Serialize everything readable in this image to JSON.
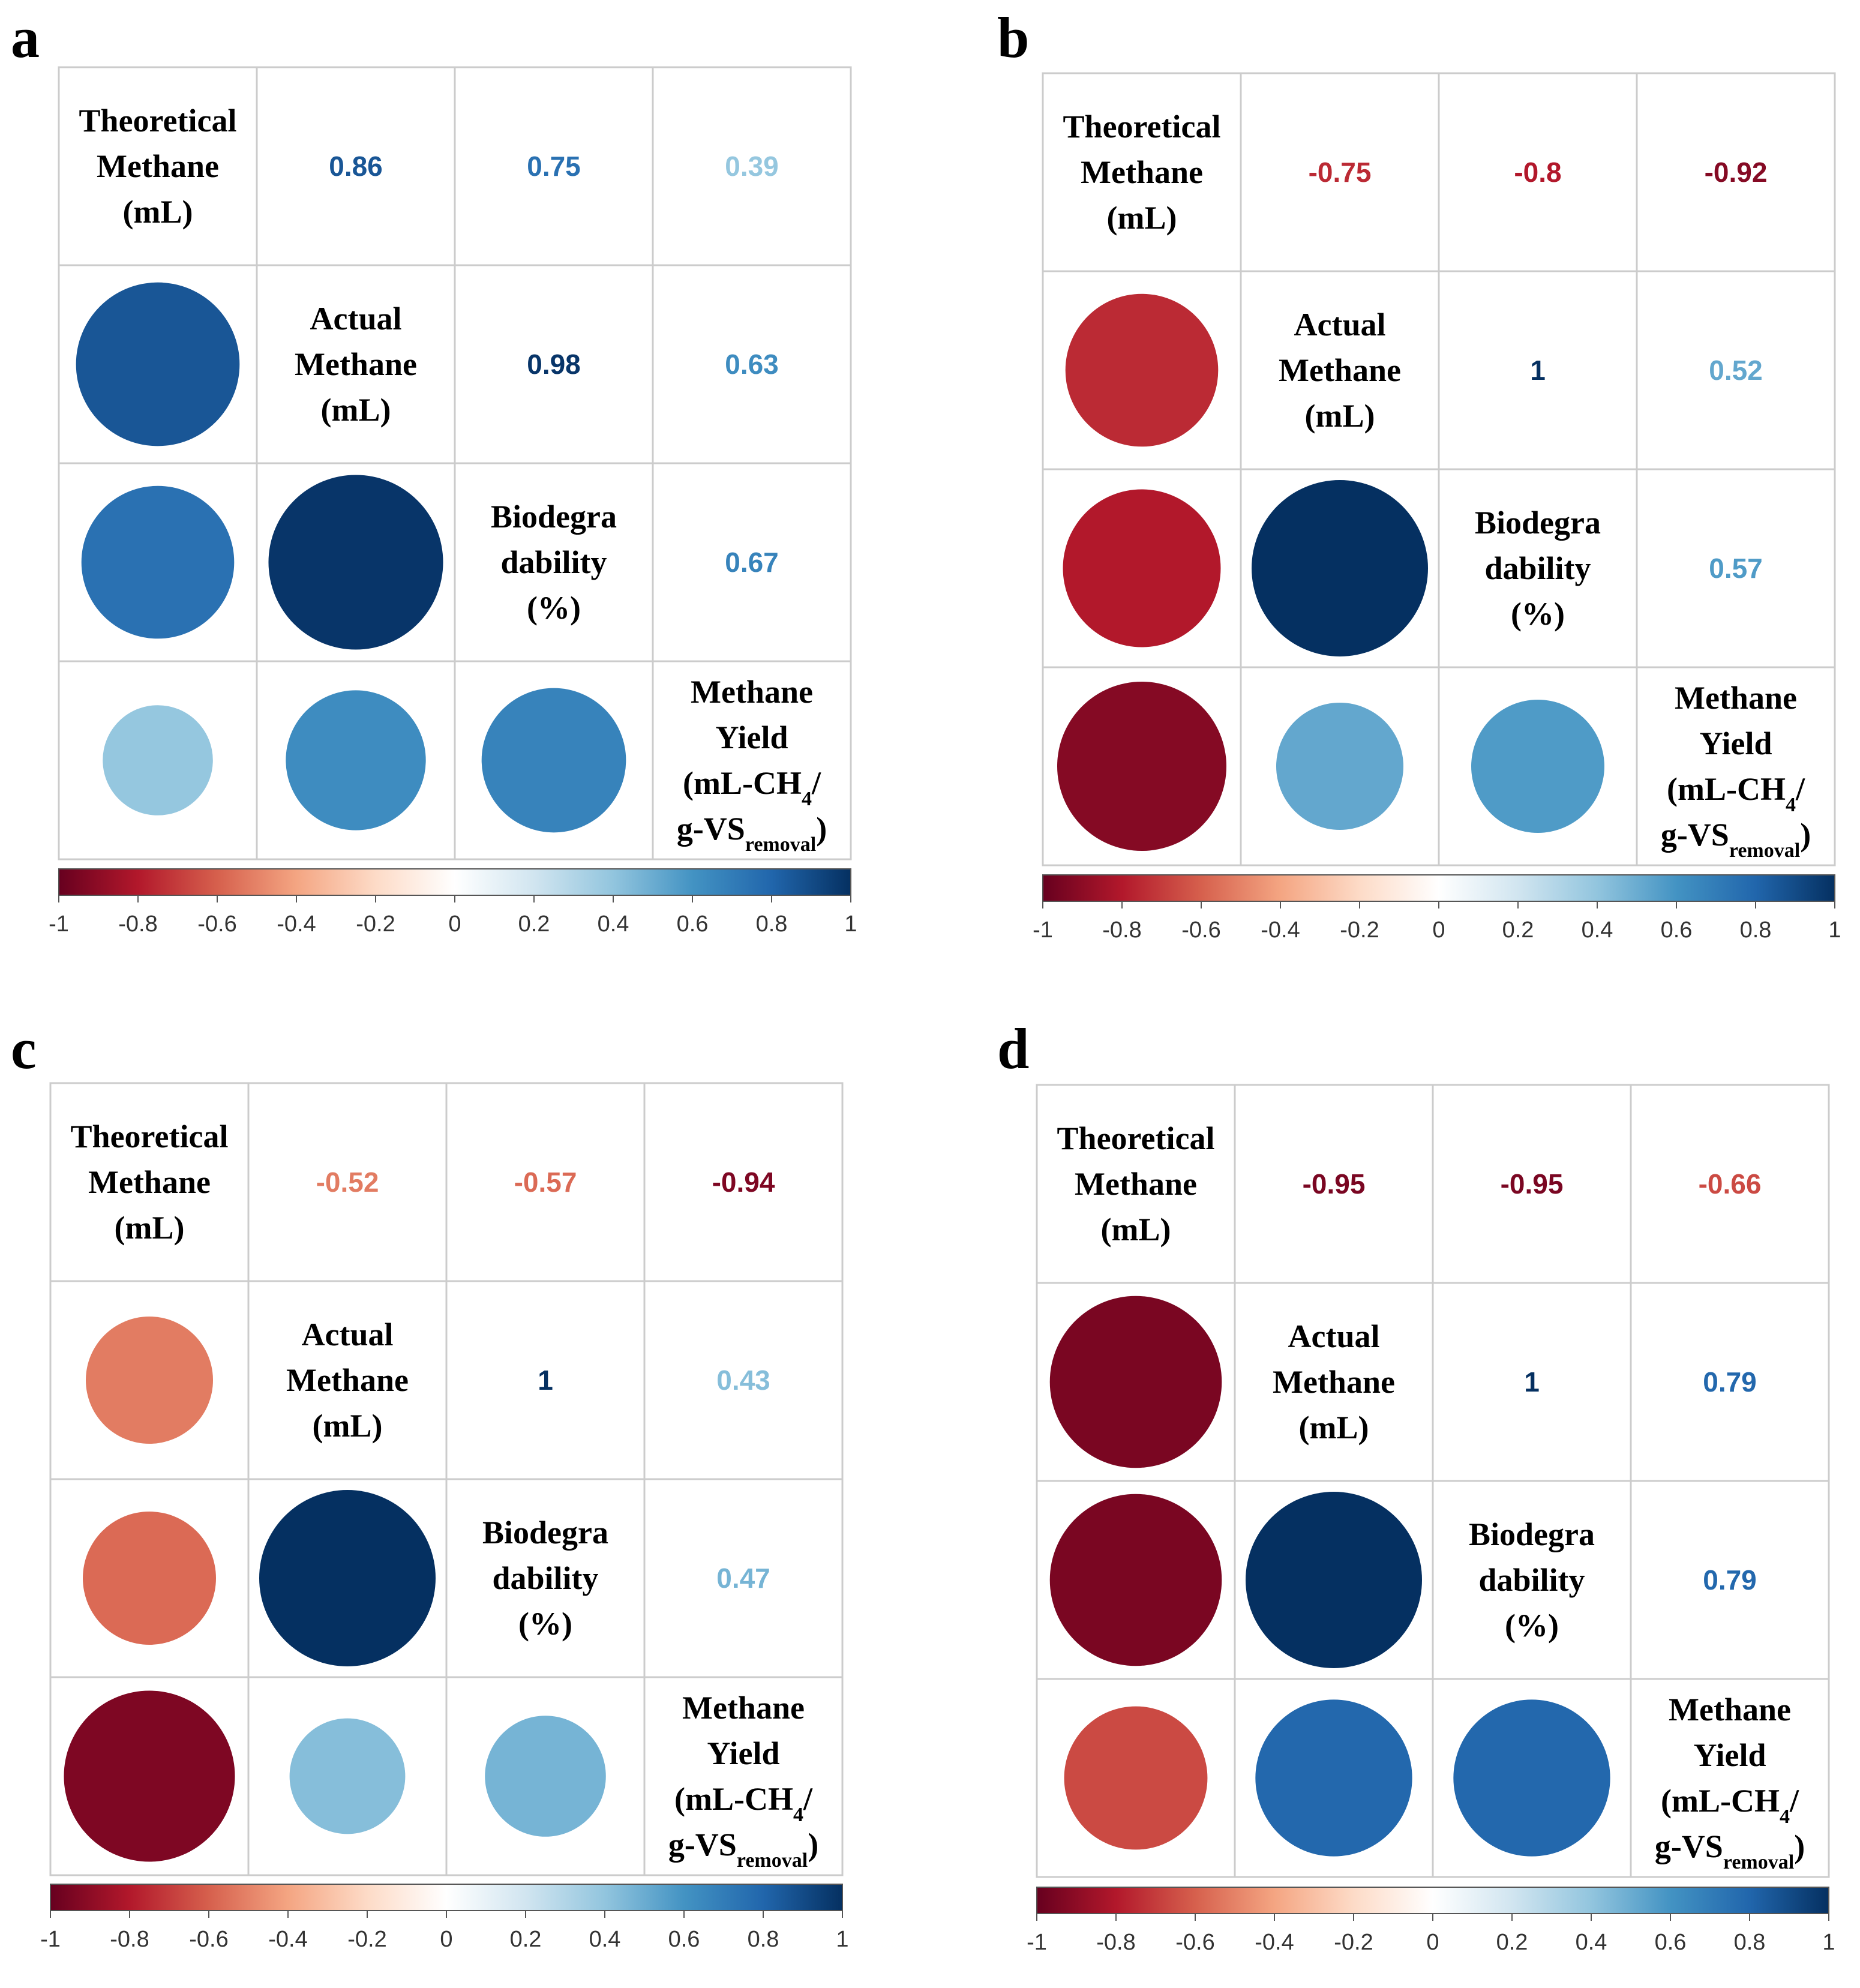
{
  "chart_data": [
    {
      "type": "heatmap",
      "panel": "a",
      "variables": [
        [
          "Theoretical",
          "Methane",
          "(mL)"
        ],
        [
          "Actual",
          "Methane",
          "(mL)"
        ],
        [
          "Biodegra",
          "dability",
          "(%)"
        ],
        [
          "Methane",
          "Yield",
          "(mL-CH4/",
          "g-VSremoval)"
        ]
      ],
      "matrix": [
        [
          1,
          0.86,
          0.75,
          0.39
        ],
        [
          0.86,
          1,
          0.98,
          0.63
        ],
        [
          0.75,
          0.98,
          1,
          0.67
        ],
        [
          0.39,
          0.63,
          0.67,
          1
        ]
      ],
      "upper_labels": [
        "0.86",
        "0.75",
        "0.39",
        "0.98",
        "0.63",
        "0.67"
      ],
      "colorbar": {
        "ticks": [
          "-1",
          "-0.8",
          "-0.6",
          "-0.4",
          "-0.2",
          "0",
          "0.2",
          "0.4",
          "0.6",
          "0.8",
          "1"
        ],
        "range": [
          -1,
          1
        ]
      }
    },
    {
      "type": "heatmap",
      "panel": "b",
      "variables": [
        [
          "Theoretical",
          "Methane",
          "(mL)"
        ],
        [
          "Actual",
          "Methane",
          "(mL)"
        ],
        [
          "Biodegra",
          "dability",
          "(%)"
        ],
        [
          "Methane",
          "Yield",
          "(mL-CH4/",
          "g-VSremoval)"
        ]
      ],
      "matrix": [
        [
          1,
          -0.75,
          -0.8,
          -0.92
        ],
        [
          -0.75,
          1,
          1,
          0.52
        ],
        [
          -0.8,
          1,
          1,
          0.57
        ],
        [
          -0.92,
          0.52,
          0.57,
          1
        ]
      ],
      "upper_labels": [
        "-0.75",
        "-0.8",
        "-0.92",
        "1",
        "0.52",
        "0.57"
      ],
      "colorbar": {
        "ticks": [
          "-1",
          "-0.8",
          "-0.6",
          "-0.4",
          "-0.2",
          "0",
          "0.2",
          "0.4",
          "0.6",
          "0.8",
          "1"
        ],
        "range": [
          -1,
          1
        ]
      }
    },
    {
      "type": "heatmap",
      "panel": "c",
      "variables": [
        [
          "Theoretical",
          "Methane",
          "(mL)"
        ],
        [
          "Actual",
          "Methane",
          "(mL)"
        ],
        [
          "Biodegra",
          "dability",
          "(%)"
        ],
        [
          "Methane",
          "Yield",
          "(mL-CH4/",
          "g-VSremoval)"
        ]
      ],
      "matrix": [
        [
          1,
          -0.52,
          -0.57,
          -0.94
        ],
        [
          -0.52,
          1,
          1,
          0.43
        ],
        [
          -0.57,
          1,
          1,
          0.47
        ],
        [
          -0.94,
          0.43,
          0.47,
          1
        ]
      ],
      "upper_labels": [
        "-0.52",
        "-0.57",
        "-0.94",
        "1",
        "0.43",
        "0.47"
      ],
      "colorbar": {
        "ticks": [
          "-1",
          "-0.8",
          "-0.6",
          "-0.4",
          "-0.2",
          "0",
          "0.2",
          "0.4",
          "0.6",
          "0.8",
          "1"
        ],
        "range": [
          -1,
          1
        ]
      }
    },
    {
      "type": "heatmap",
      "panel": "d",
      "variables": [
        [
          "Theoretical",
          "Methane",
          "(mL)"
        ],
        [
          "Actual",
          "Methane",
          "(mL)"
        ],
        [
          "Biodegra",
          "dability",
          "(%)"
        ],
        [
          "Methane",
          "Yield",
          "(mL-CH4/",
          "g-VSremoval)"
        ]
      ],
      "matrix": [
        [
          1,
          -0.95,
          -0.95,
          -0.66
        ],
        [
          -0.95,
          1,
          1,
          0.79
        ],
        [
          -0.95,
          1,
          1,
          0.79
        ],
        [
          -0.66,
          0.79,
          0.79,
          1
        ]
      ],
      "upper_labels": [
        "-0.95",
        "-0.95",
        "-0.66",
        "1",
        "0.79",
        "0.79"
      ],
      "colorbar": {
        "ticks": [
          "-1",
          "-0.8",
          "-0.6",
          "-0.4",
          "-0.2",
          "0",
          "0.2",
          "0.4",
          "0.6",
          "0.8",
          "1"
        ],
        "range": [
          -1,
          1
        ]
      }
    }
  ],
  "colors": {
    "negative_end": "#67001f",
    "neutral": "#ffffff",
    "positive_end": "#053061"
  }
}
